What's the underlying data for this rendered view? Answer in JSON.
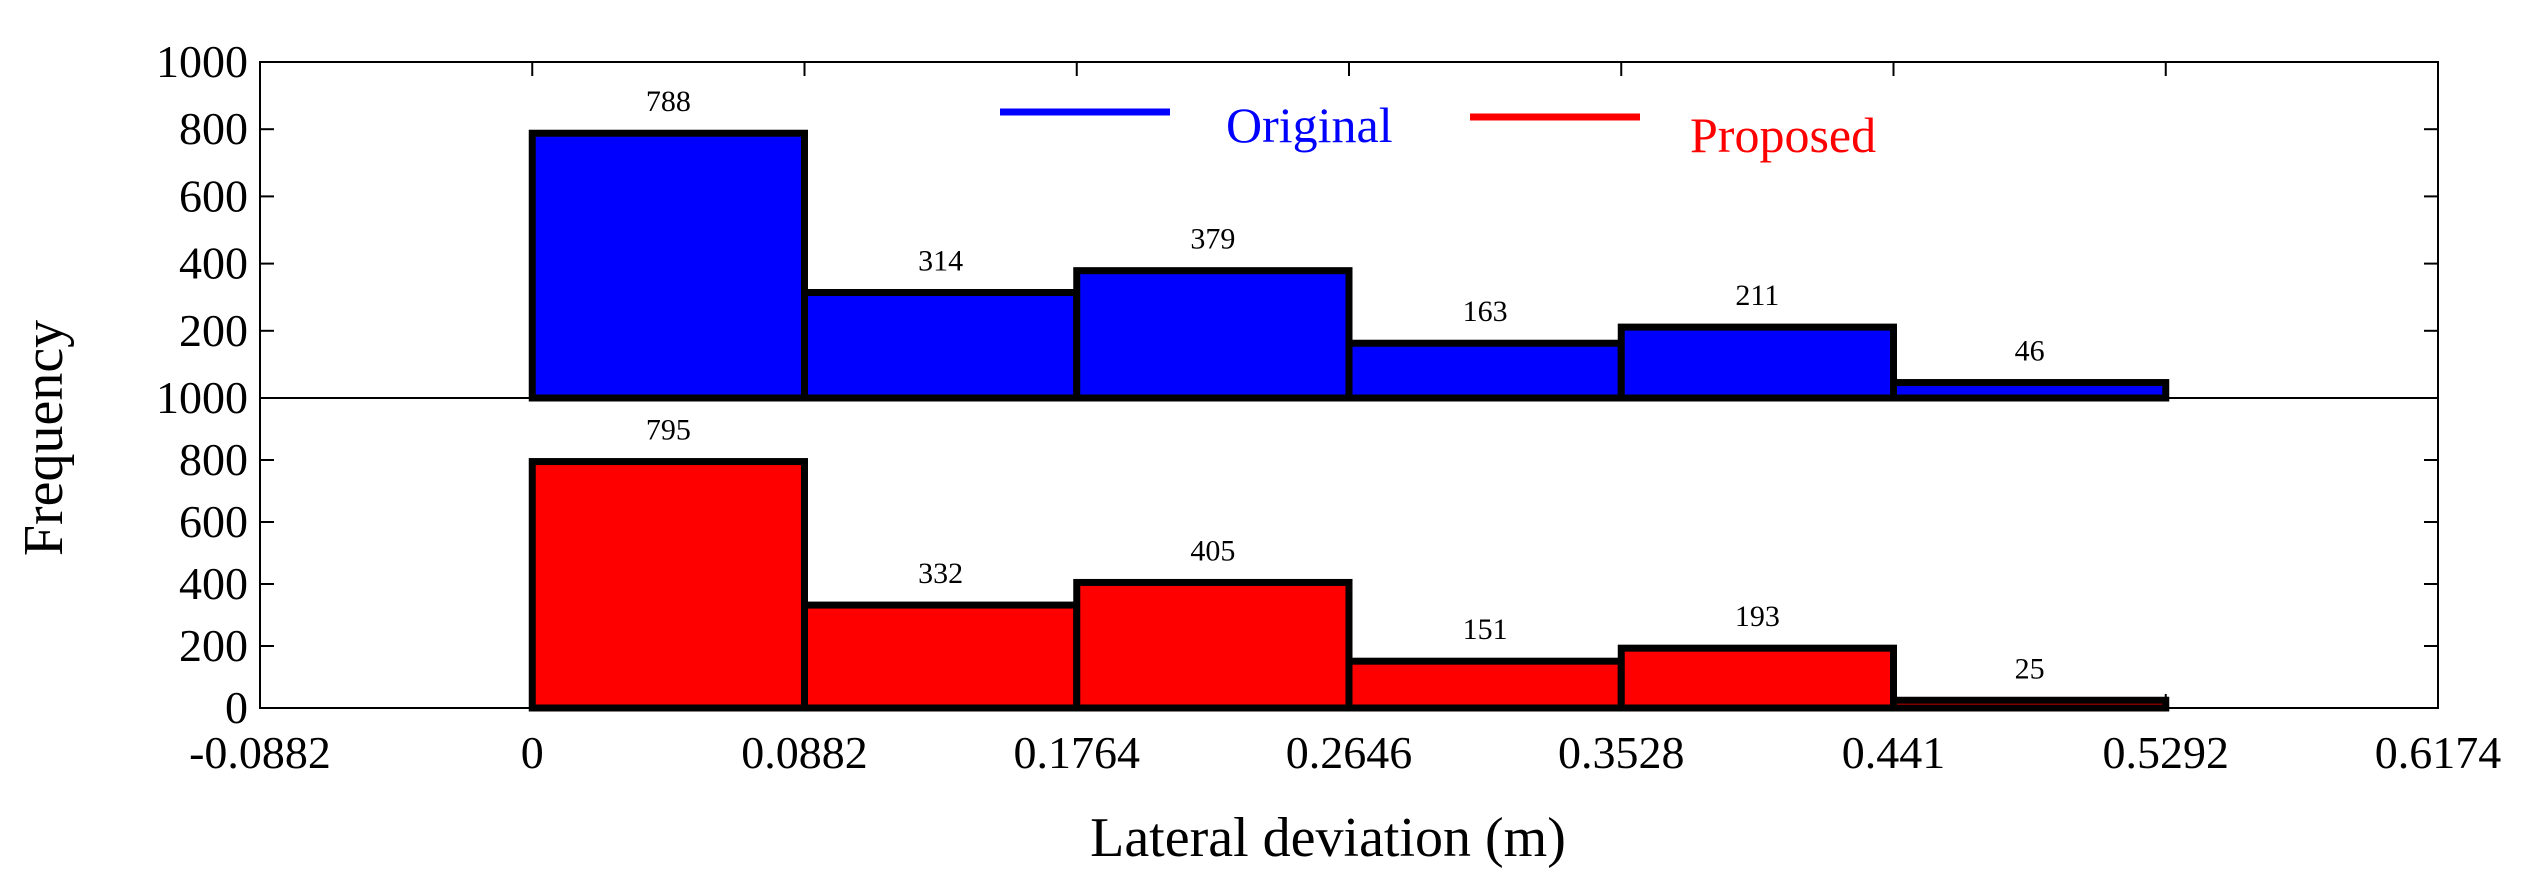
{
  "chart_data": {
    "type": "bar",
    "ylabel": "Frequency",
    "xlabel": "Lateral deviation (m)",
    "xlim": [
      -0.0882,
      0.6174
    ],
    "x_ticks": [
      "-0.0882",
      "0",
      "0.0882",
      "0.1764",
      "0.2646",
      "0.3528",
      "0.441",
      "0.5292",
      "0.6174"
    ],
    "bin_edges": [
      0,
      0.0882,
      0.1764,
      0.2646,
      0.3528,
      0.441,
      0.5292
    ],
    "ylim": [
      0,
      1000
    ],
    "legend": {
      "position": "top-center"
    },
    "series": [
      {
        "name": "Original",
        "color": "#0000ff",
        "values": [
          788,
          314,
          379,
          163,
          211,
          46
        ],
        "y_ticks": [
          "200",
          "400",
          "600",
          "800",
          "1000"
        ]
      },
      {
        "name": "Proposed",
        "color": "#ff0000",
        "values": [
          795,
          332,
          405,
          151,
          193,
          25
        ],
        "y_ticks": [
          "0",
          "200",
          "400",
          "600",
          "800",
          "1000"
        ]
      }
    ]
  }
}
